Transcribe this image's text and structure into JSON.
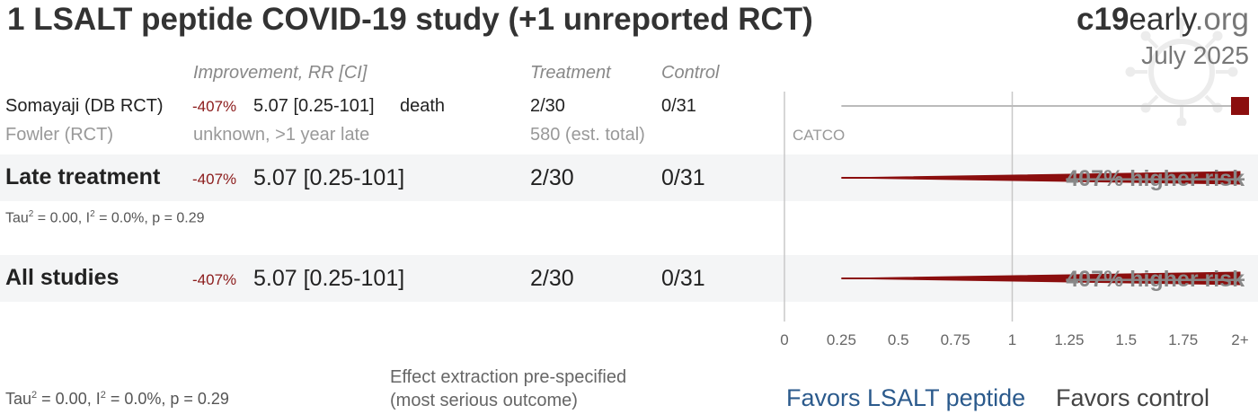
{
  "header": {
    "title": "1 LSALT peptide COVID-19 study (+1 unreported RCT)",
    "brand_bold": "c19",
    "brand_rest": "early",
    "brand_tld": ".org",
    "date": "July 2025"
  },
  "columns": {
    "improvement": "Improvement, RR [CI]",
    "treatment": "Treatment",
    "control": "Control"
  },
  "studies": [
    {
      "name": "Somayaji (DB RCT)",
      "improvement": "-407%",
      "rr": "5.07 [0.25-101]",
      "outcome": "death",
      "treatment": "2/30",
      "control": "0/31"
    }
  ],
  "unreported": {
    "name": "Fowler (RCT)",
    "status": "unknown, >1 year late",
    "total": "580 (est. total)",
    "trial": "CATCO"
  },
  "groups": [
    {
      "name": "Late treatment",
      "improvement": "-407%",
      "rr": "5.07 [0.25-101]",
      "treatment": "2/30",
      "control": "0/31",
      "label": "407% higher risk",
      "stats_tau": "Tau",
      "stats_rest": " = 0.00, I",
      "stats_end": " = 0.0%, p = 0.29"
    },
    {
      "name": "All studies",
      "improvement": "-407%",
      "rr": "5.07 [0.25-101]",
      "treatment": "2/30",
      "control": "0/31",
      "label": "407% higher risk"
    }
  ],
  "footer": {
    "stats_tau": "Tau",
    "stats_rest": " = 0.00, I",
    "stats_end": " = 0.0%, p = 0.29",
    "note_line1": "Effect extraction pre-specified",
    "note_line2": "(most serious outcome)",
    "favors_left": "Favors LSALT peptide",
    "favors_right": "Favors control"
  },
  "chart_data": {
    "type": "forest",
    "xlim": [
      0,
      2
    ],
    "x_ticks": [
      "0",
      "0.25",
      "0.5",
      "0.75",
      "1",
      "1.25",
      "1.5",
      "1.75",
      "2+"
    ],
    "x_tick_values": [
      0,
      0.25,
      0.5,
      0.75,
      1,
      1.25,
      1.5,
      1.75,
      2
    ],
    "reference_line": 1,
    "rows": [
      {
        "name": "Somayaji (DB RCT)",
        "rr": 5.07,
        "ci": [
          0.25,
          101
        ],
        "marker": "square"
      },
      {
        "name": "Late treatment",
        "rr": 5.07,
        "ci": [
          0.25,
          101
        ],
        "marker": "diamond"
      },
      {
        "name": "All studies",
        "rr": 5.07,
        "ci": [
          0.25,
          101
        ],
        "marker": "diamond"
      }
    ],
    "colors": {
      "effect": "#8b0e0e",
      "axis": "#c8c8c8",
      "line": "#bbbbbb"
    }
  }
}
